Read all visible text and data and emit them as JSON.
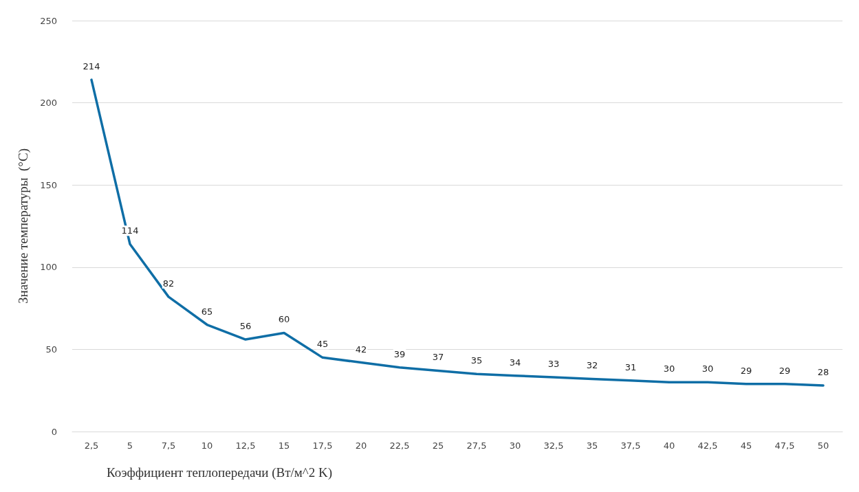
{
  "chart_data": {
    "type": "line",
    "xlabel": "Коэффициент теплопередачи (Вт/м^2 K)",
    "ylabel": "Значение температуры  (°C)",
    "categories": [
      "2,5",
      "5",
      "7,5",
      "10",
      "12,5",
      "15",
      "17,5",
      "20",
      "22,5",
      "25",
      "27,5",
      "30",
      "32,5",
      "35",
      "37,5",
      "40",
      "42,5",
      "45",
      "47,5",
      "50"
    ],
    "series": [
      {
        "color": "#0f6ea6",
        "values": [
          214,
          114,
          82,
          65,
          56,
          60,
          45,
          42,
          39,
          37,
          35,
          34,
          33,
          32,
          31,
          30,
          30,
          29,
          29,
          28
        ]
      }
    ],
    "ylim": [
      0,
      250
    ],
    "yticks": [
      0,
      50,
      100,
      150,
      200,
      250
    ],
    "grid": "y",
    "marker": "none",
    "line_style": "solid",
    "data_labels": true
  }
}
